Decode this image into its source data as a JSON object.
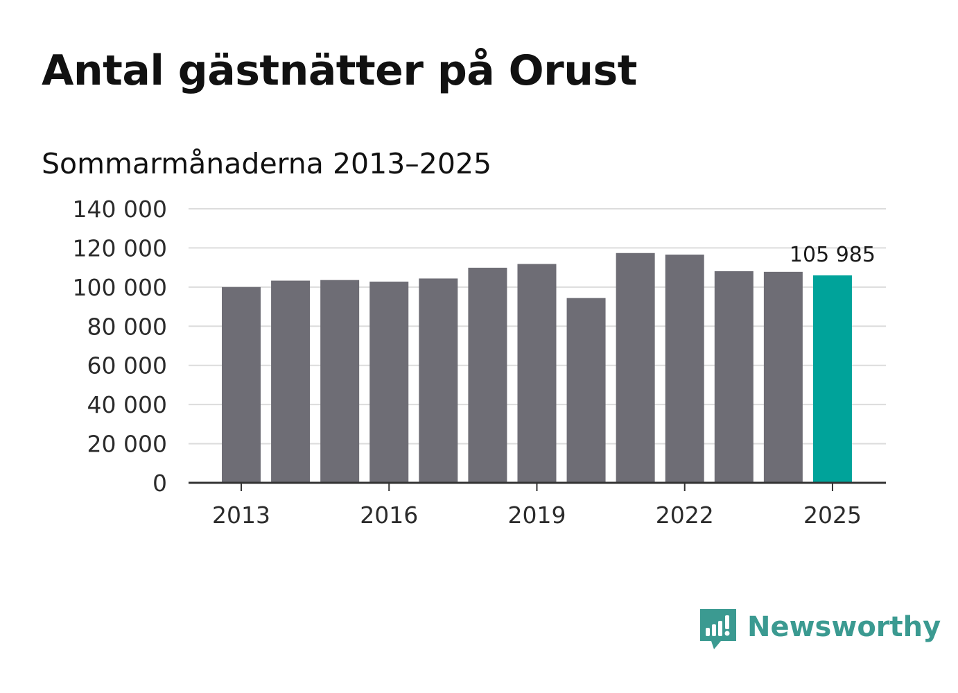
{
  "title": "Antal gästnätter på Orust",
  "subtitle": "Sommarmånaderna 2013–2025",
  "brand": {
    "name": "Newsworthy",
    "icon": "newsworthy-logo-icon",
    "color": "#3b9a91"
  },
  "colors": {
    "bar": "#6e6d75",
    "highlight": "#00a39a",
    "grid": "#dcdcdc",
    "axis": "#333333"
  },
  "chart_data": {
    "type": "bar",
    "categories": [
      "2013",
      "2014",
      "2015",
      "2016",
      "2017",
      "2018",
      "2019",
      "2020",
      "2021",
      "2022",
      "2023",
      "2024",
      "2025"
    ],
    "values": [
      100000,
      103300,
      103600,
      102800,
      104400,
      109900,
      111800,
      94400,
      117400,
      116600,
      108100,
      107800,
      105985
    ],
    "highlight_index": 12,
    "x_tick_labels": [
      "2013",
      "2016",
      "2019",
      "2022",
      "2025"
    ],
    "y_ticks": [
      0,
      20000,
      40000,
      60000,
      80000,
      100000,
      120000,
      140000
    ],
    "y_tick_labels": [
      "0",
      "20 000",
      "40 000",
      "60 000",
      "80 000",
      "100 000",
      "120 000",
      "140 000"
    ],
    "ylim": [
      0,
      140000
    ],
    "grid": true,
    "data_labels": [
      {
        "category": "2025",
        "text": "105 985"
      }
    ],
    "title": "Antal gästnätter på Orust",
    "subtitle": "Sommarmånaderna 2013–2025",
    "xlabel": "",
    "ylabel": ""
  }
}
